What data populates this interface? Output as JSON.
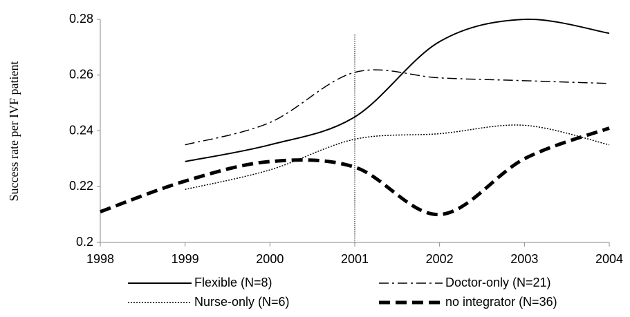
{
  "chart_data": {
    "type": "line",
    "y_label": "Success rate per IVF patient",
    "x": [
      1998,
      1999,
      2000,
      2001,
      2002,
      2003,
      2004
    ],
    "series": [
      {
        "name": "Flexible (N=8)",
        "color": "#000000",
        "style": "solid",
        "values": [
          null,
          0.229,
          0.235,
          0.245,
          0.272,
          0.28,
          0.275
        ]
      },
      {
        "name": "Doctor-only (N=21)",
        "color": "#000000",
        "style": "dashdot",
        "values": [
          null,
          0.235,
          0.243,
          0.261,
          0.259,
          0.258,
          0.257
        ]
      },
      {
        "name": "Nurse-only (N=6)",
        "color": "#000000",
        "style": "dotted",
        "values": [
          null,
          0.219,
          0.226,
          0.237,
          0.239,
          0.242,
          0.235
        ]
      },
      {
        "name": "no integrator (N=36)",
        "color": "#000000",
        "style": "thickdash",
        "values": [
          0.211,
          0.222,
          0.229,
          0.227,
          0.21,
          0.23,
          0.241
        ]
      }
    ],
    "vline": 2001,
    "xlim": [
      1998,
      2004
    ],
    "xticks": [
      1998,
      1999,
      2000,
      2001,
      2002,
      2003,
      2004
    ],
    "ylim": [
      0.2,
      0.28
    ],
    "yticks": [
      {
        "value": 0.2,
        "label": "0.2"
      },
      0.22,
      0.24,
      0.26,
      0.28
    ],
    "grid": false
  }
}
